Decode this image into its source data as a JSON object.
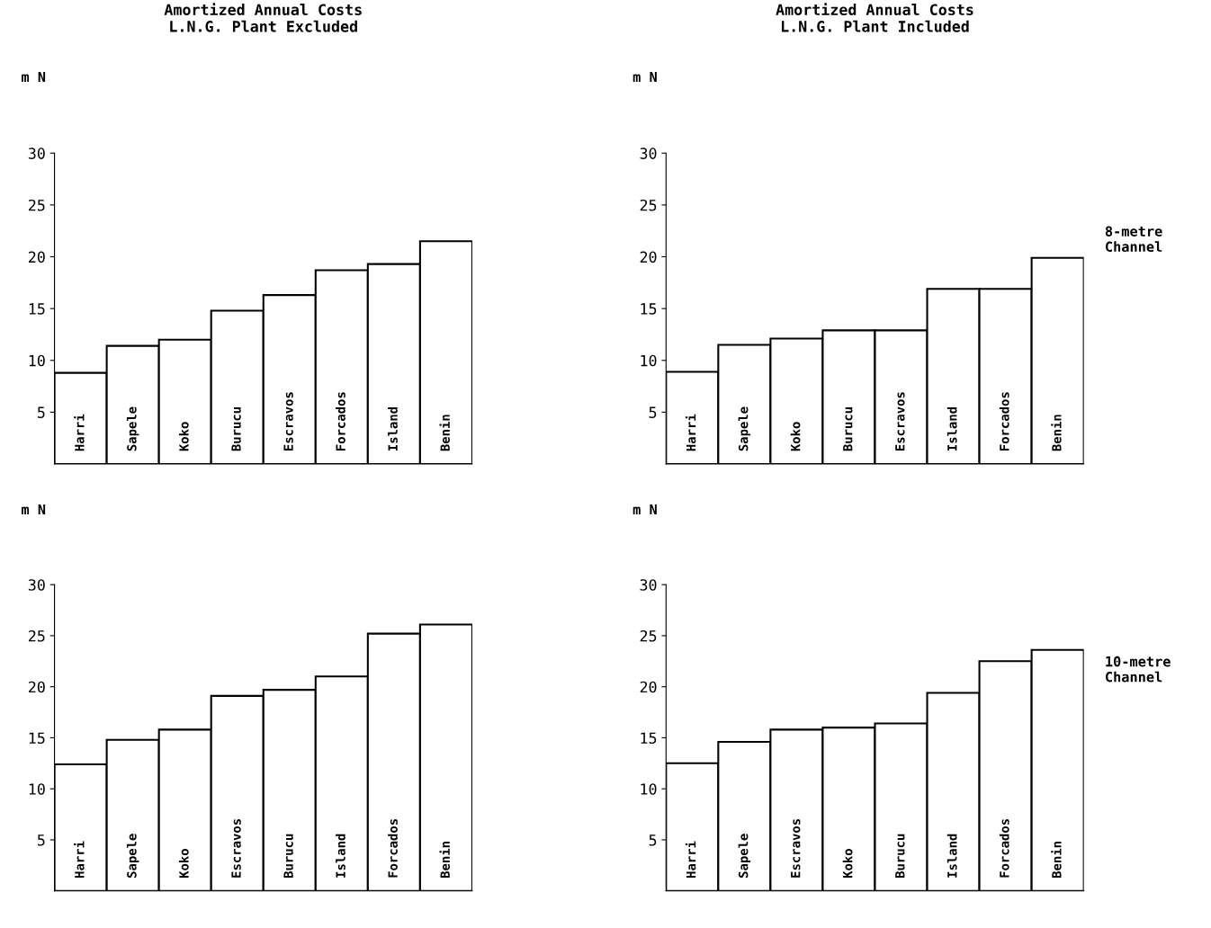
{
  "chart_data": [
    {
      "type": "bar",
      "title": "Amortized Annual Costs\nL.N.G. Plant Excluded",
      "ylabel": "m N",
      "categories": [
        "Harri",
        "Sapele",
        "Koko",
        "Burucu",
        "Escravos",
        "Forcados",
        "Island",
        "Benin"
      ],
      "values": [
        8.8,
        11.4,
        12.0,
        14.8,
        16.3,
        18.7,
        19.3,
        21.5
      ],
      "color": "#ffffff",
      "ylim": [
        0,
        30
      ],
      "yticks": [
        5,
        10,
        15,
        20,
        25,
        30
      ],
      "grid": false
    },
    {
      "type": "bar",
      "title": "Amortized Annual Costs\nL.N.G. Plant Included",
      "ylabel": "m N",
      "categories": [
        "Harri",
        "Sapele",
        "Koko",
        "Burucu",
        "Escravos",
        "Island",
        "Forcados",
        "Benin"
      ],
      "values": [
        8.9,
        11.5,
        12.1,
        12.9,
        12.9,
        16.9,
        16.9,
        19.9
      ],
      "color": "#ffffff",
      "ylim": [
        0,
        30
      ],
      "yticks": [
        5,
        10,
        15,
        20,
        25,
        30
      ],
      "grid": false,
      "annotations": [
        "8-metre\nChannel"
      ]
    },
    {
      "type": "bar",
      "ylabel": "m N",
      "categories": [
        "Harri",
        "Sapele",
        "Koko",
        "Escravos",
        "Burucu",
        "Island",
        "Forcados",
        "Benin"
      ],
      "values": [
        12.4,
        14.8,
        15.8,
        19.1,
        19.7,
        21.0,
        25.2,
        26.1
      ],
      "color": "#ffffff",
      "ylim": [
        0,
        30
      ],
      "yticks": [
        5,
        10,
        15,
        20,
        25,
        30
      ],
      "grid": false
    },
    {
      "type": "bar",
      "ylabel": "m N",
      "categories": [
        "Harri",
        "Sapele",
        "Escravos",
        "Koko",
        "Burucu",
        "Island",
        "Forcados",
        "Benin"
      ],
      "values": [
        12.5,
        14.6,
        15.8,
        16.0,
        16.4,
        19.4,
        22.5,
        23.6
      ],
      "color": "#ffffff",
      "ylim": [
        0,
        30
      ],
      "yticks": [
        5,
        10,
        15,
        20,
        25,
        30
      ],
      "grid": false,
      "annotations": [
        "10-metre\nChannel"
      ]
    }
  ]
}
